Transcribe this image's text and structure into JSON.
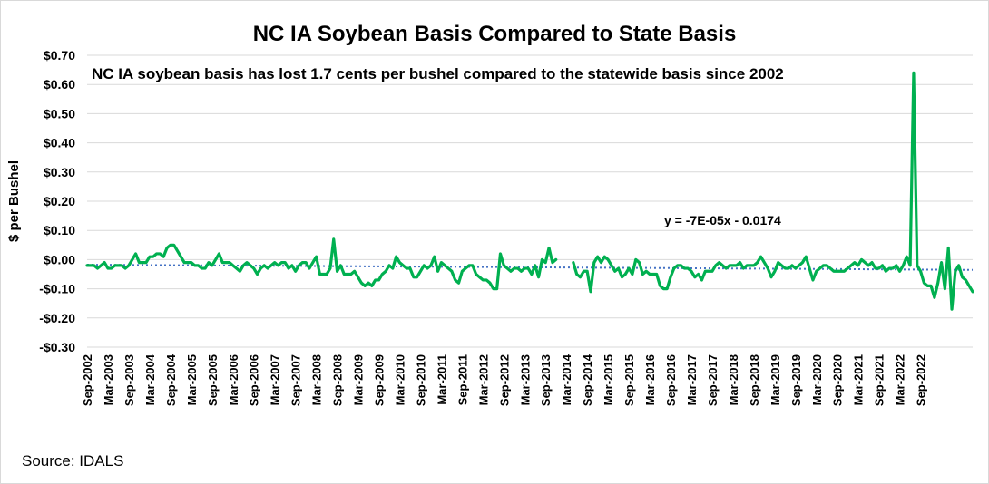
{
  "chart_data": {
    "type": "line",
    "title": "NC IA Soybean Basis Compared to State Basis",
    "annotation": "NC IA soybean basis has lost 1.7 cents per bushel compared to the statewide basis since 2002",
    "trendline_equation": "y = -7E-05x - 0.0174",
    "trendline": {
      "slope": -7e-05,
      "intercept": -0.0174
    },
    "ylabel": "$ per Bushel",
    "source": "Source: IDALS",
    "ylim": [
      -0.3,
      0.7
    ],
    "yticks": [
      0.7,
      0.6,
      0.5,
      0.4,
      0.3,
      0.2,
      0.1,
      0.0,
      -0.1,
      -0.2,
      -0.3
    ],
    "ytick_labels": [
      "$0.70",
      "$0.60",
      "$0.50",
      "$0.40",
      "$0.30",
      "$0.20",
      "$0.10",
      "$0.00",
      "-$0.10",
      "-$0.20",
      "-$0.30"
    ],
    "x_start": "Sep-2002",
    "x_tick_labels": [
      "Sep-2002",
      "Mar-2003",
      "Sep-2003",
      "Mar-2004",
      "Sep-2004",
      "Mar-2005",
      "Sep-2005",
      "Mar-2006",
      "Sep-2006",
      "Mar-2007",
      "Sep-2007",
      "Mar-2008",
      "Sep-2008",
      "Mar-2009",
      "Sep-2009",
      "Mar-2010",
      "Sep-2010",
      "Mar-2011",
      "Sep-2011",
      "Mar-2012",
      "Sep-2012",
      "Mar-2013",
      "Sep-2013",
      "Mar-2014",
      "Sep-2014",
      "Mar-2015",
      "Sep-2015",
      "Mar-2016",
      "Sep-2016",
      "Mar-2017",
      "Sep-2017",
      "Mar-2018",
      "Sep-2018",
      "Mar-2019",
      "Sep-2019",
      "Mar-2020",
      "Sep-2020",
      "Mar-2021",
      "Sep-2021",
      "Mar-2022",
      "Sep-2022"
    ],
    "grid": true,
    "colors": {
      "series": "#00b050",
      "trend": "#4472c4",
      "grid": "#d9d9d9"
    },
    "series": [
      {
        "values": [
          -0.02,
          -0.02,
          -0.02,
          -0.03,
          -0.02,
          -0.01,
          -0.03,
          -0.03,
          -0.02,
          -0.02,
          -0.02,
          -0.03,
          -0.02,
          0.0,
          0.02,
          -0.01,
          -0.01,
          -0.01,
          0.01,
          0.01,
          0.02,
          0.02,
          0.01,
          0.04,
          0.05,
          0.05,
          0.03,
          0.01,
          -0.01,
          -0.01,
          -0.01,
          -0.02,
          -0.02,
          -0.03,
          -0.03,
          -0.01,
          -0.02,
          0.0,
          0.02,
          -0.01,
          -0.01,
          -0.01,
          -0.02,
          -0.03,
          -0.04,
          -0.02,
          -0.01,
          -0.02,
          -0.03,
          -0.05,
          -0.03,
          -0.02,
          -0.03,
          -0.02,
          -0.01,
          -0.02,
          -0.01,
          -0.01,
          -0.03,
          -0.02,
          -0.04,
          -0.02,
          -0.01,
          -0.01,
          -0.03,
          -0.01,
          0.01,
          -0.05,
          -0.05,
          -0.05,
          -0.03,
          0.07,
          -0.04,
          -0.02,
          -0.05,
          -0.05,
          -0.05,
          -0.04,
          -0.06,
          -0.08,
          -0.09,
          -0.08,
          -0.09,
          -0.07,
          -0.07,
          -0.05,
          -0.04,
          -0.02,
          -0.03,
          0.01,
          -0.01,
          -0.02,
          -0.03,
          -0.03,
          -0.06,
          -0.06,
          -0.04,
          -0.02,
          -0.03,
          -0.02,
          0.01,
          -0.04,
          -0.01,
          -0.02,
          -0.03,
          -0.04,
          -0.07,
          -0.08,
          -0.04,
          -0.03,
          -0.02,
          -0.02,
          -0.05,
          -0.06,
          -0.07,
          -0.07,
          -0.08,
          -0.1,
          -0.1,
          0.02,
          -0.02,
          -0.03,
          -0.04,
          -0.03,
          -0.03,
          -0.04,
          -0.03,
          -0.03,
          -0.05,
          -0.02,
          -0.06,
          0.0,
          -0.01,
          0.04,
          -0.01,
          0.0,
          null,
          null,
          null,
          null,
          -0.01,
          -0.05,
          -0.06,
          -0.04,
          -0.04,
          -0.11,
          -0.01,
          0.01,
          -0.01,
          0.01,
          0.0,
          -0.02,
          -0.04,
          -0.03,
          -0.06,
          -0.05,
          -0.03,
          -0.05,
          0.0,
          -0.01,
          -0.05,
          -0.04,
          -0.05,
          -0.05,
          -0.05,
          -0.09,
          -0.1,
          -0.1,
          -0.06,
          -0.03,
          -0.02,
          -0.02,
          -0.03,
          -0.03,
          -0.04,
          -0.06,
          -0.05,
          -0.07,
          -0.04,
          -0.04,
          -0.04,
          -0.02,
          -0.01,
          -0.02,
          -0.03,
          -0.02,
          -0.02,
          -0.02,
          -0.01,
          -0.03,
          -0.02,
          -0.02,
          -0.02,
          -0.01,
          0.01,
          -0.01,
          -0.03,
          -0.06,
          -0.04,
          -0.01,
          -0.02,
          -0.03,
          -0.03,
          -0.02,
          -0.03,
          -0.02,
          -0.01,
          0.01,
          -0.03,
          -0.07,
          -0.04,
          -0.03,
          -0.02,
          -0.02,
          -0.03,
          -0.04,
          -0.04,
          -0.04,
          -0.04,
          -0.03,
          -0.02,
          -0.01,
          -0.02,
          0.0,
          -0.01,
          -0.02,
          -0.01,
          -0.03,
          -0.03,
          -0.02,
          -0.04,
          -0.03,
          -0.03,
          -0.02,
          -0.04,
          -0.02,
          0.01,
          -0.02,
          0.64,
          -0.02,
          -0.04,
          -0.08,
          -0.09,
          -0.09,
          -0.13,
          -0.08,
          -0.01,
          -0.1,
          0.04,
          -0.17,
          -0.04,
          -0.02,
          -0.06,
          -0.07,
          -0.09,
          -0.11
        ]
      }
    ]
  }
}
